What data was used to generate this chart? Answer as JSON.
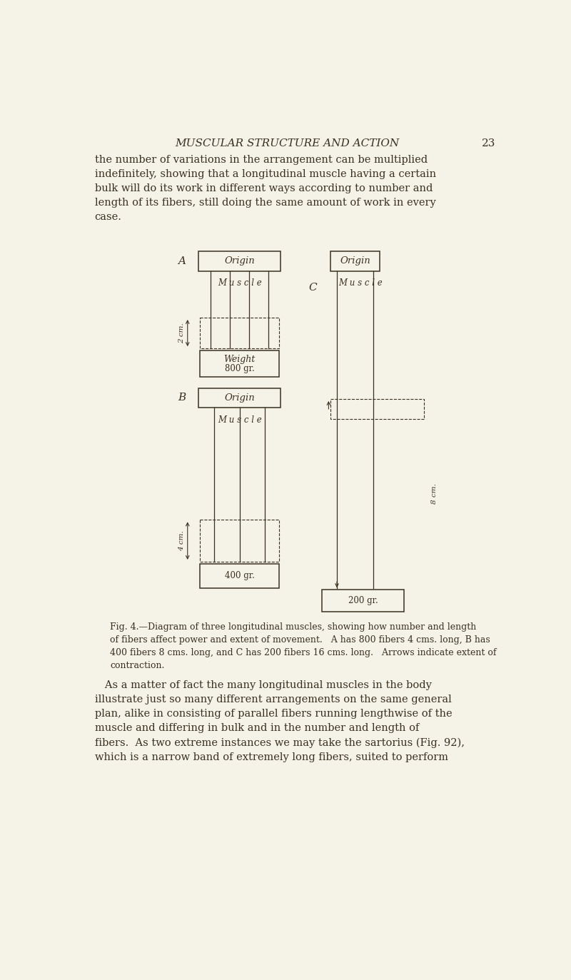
{
  "bg_color": "#f5f2e8",
  "text_color": "#3a3020",
  "line_color": "#3a3020",
  "title_text": "MUSCULAR STRUCTURE AND ACTION",
  "page_number": "23",
  "header_text": "the number of variations in the arrangement can be multiplied\nindefinitely, showing that a longitudinal muscle having a certain\nbulk will do its work in different ways according to number and\nlength of its fibers, still doing the same amount of work in every\ncase.",
  "footer_text": "Fig. 4.—Diagram of three longitudinal muscles, showing how number and length\nof fibers affect power and extent of movement.   A has 800 fibers 4 cms. long, B has\n400 fibers 8 cms. long, and C has 200 fibers 16 cms. long.   Arrows indicate extent of\ncontraction.",
  "body_text": "   As a matter of fact the many longitudinal muscles in the body\nillustrate just so many different arrangements on the same general\nplan, alike in consisting of parallel fibers running lengthwise of the\nmuscle and differing in bulk and in the number and length of\nfibers.  As two extreme instances we may take the sartorius (Fig. 92),\nwhich is a narrow band of extremely long fibers, suited to perform"
}
